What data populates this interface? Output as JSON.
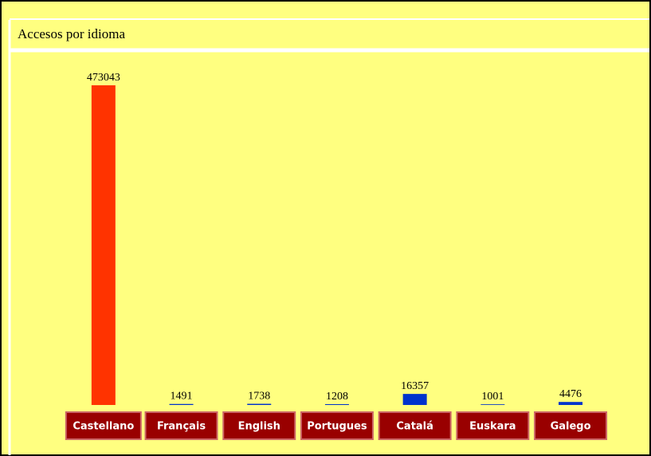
{
  "chart_data": {
    "type": "bar",
    "title": "Accesos por idioma",
    "categories": [
      "Castellano",
      "Français",
      "English",
      "Portugues",
      "Catalá",
      "Euskara",
      "Galego"
    ],
    "values": [
      473043,
      1491,
      1738,
      1208,
      16357,
      1001,
      4476
    ],
    "colors": [
      "#ff3300",
      "#0033cc",
      "#0033cc",
      "#0033cc",
      "#0033cc",
      "#0033cc",
      "#0033cc"
    ]
  }
}
